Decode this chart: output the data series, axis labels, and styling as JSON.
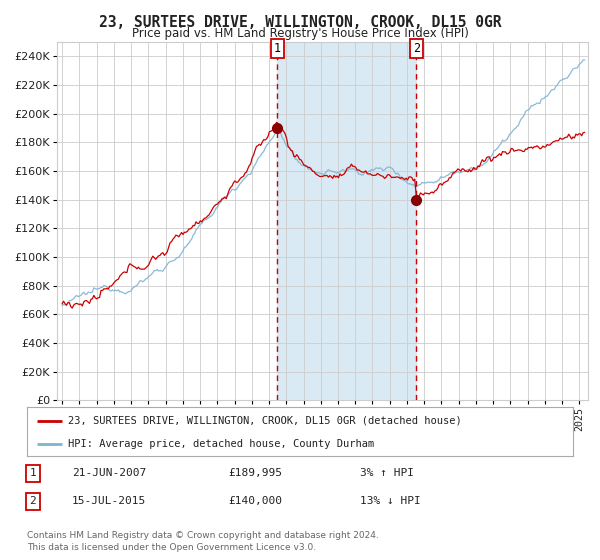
{
  "title": "23, SURTEES DRIVE, WILLINGTON, CROOK, DL15 0GR",
  "subtitle": "Price paid vs. HM Land Registry's House Price Index (HPI)",
  "legend_line1": "23, SURTEES DRIVE, WILLINGTON, CROOK, DL15 0GR (detached house)",
  "legend_line2": "HPI: Average price, detached house, County Durham",
  "footnote": "Contains HM Land Registry data © Crown copyright and database right 2024.\nThis data is licensed under the Open Government Licence v3.0.",
  "sale1_date": "21-JUN-2007",
  "sale1_price": "£189,995",
  "sale1_hpi": "3% ↑ HPI",
  "sale2_date": "15-JUL-2015",
  "sale2_price": "£140,000",
  "sale2_hpi": "13% ↓ HPI",
  "red_line_color": "#cc0000",
  "blue_line_color": "#7fb3d3",
  "shading_color": "#daeaf4",
  "dashed_line_color": "#cc0000",
  "background_color": "#ffffff",
  "grid_color": "#cccccc",
  "dot_color": "#8b0000",
  "sale1_x": 2007.47,
  "sale1_y": 189995,
  "sale2_x": 2015.54,
  "sale2_y": 140000,
  "ylim": [
    0,
    250000
  ],
  "xlim_left": 1994.7,
  "xlim_right": 2025.5
}
